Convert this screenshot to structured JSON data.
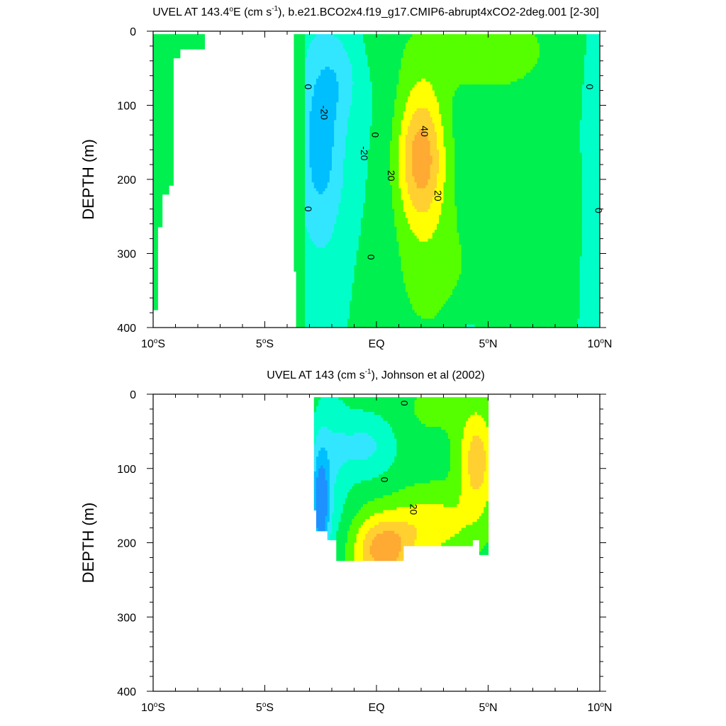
{
  "chart_data": [
    {
      "type": "heatmap",
      "subtype": "filled-contour",
      "title_parts": {
        "prefix": "UVEL AT 143.4",
        "deg": "o",
        "units_pre": "E (cm s",
        "sup": "-1",
        "suffix": "), b.e21.BCO2x4.f19_g17.CMIP6-abrupt4xCO2-2deg.001 [2-30]"
      },
      "ylabel": "DEPTH (m)",
      "xlim": [
        -10,
        10
      ],
      "ylim": [
        0,
        400
      ],
      "y_reversed": true,
      "x_ticks": [
        -10,
        -5,
        0,
        5,
        10
      ],
      "x_tick_labels": [
        {
          "num": "10",
          "deg": "o",
          "hemi": "S"
        },
        {
          "num": "5",
          "deg": "o",
          "hemi": "S"
        },
        {
          "num": "EQ",
          "deg": "",
          "hemi": ""
        },
        {
          "num": "5",
          "deg": "o",
          "hemi": "N"
        },
        {
          "num": "10",
          "deg": "o",
          "hemi": "N"
        }
      ],
      "y_ticks": [
        0,
        100,
        200,
        300,
        400
      ],
      "y_tick_labels": [
        "0",
        "100",
        "200",
        "300",
        "400"
      ],
      "contour_interval": 10,
      "color_levels": [
        {
          "range": [
            -40,
            -30
          ],
          "color": "#1e90ff"
        },
        {
          "range": [
            -30,
            -20
          ],
          "color": "#00bfff"
        },
        {
          "range": [
            -20,
            -10
          ],
          "color": "#33e6ff"
        },
        {
          "range": [
            -10,
            0
          ],
          "color": "#00ffc8"
        },
        {
          "range": [
            0,
            10
          ],
          "color": "#00f050"
        },
        {
          "range": [
            10,
            20
          ],
          "color": "#55ff00"
        },
        {
          "range": [
            20,
            30
          ],
          "color": "#ffff00"
        },
        {
          "range": [
            30,
            40
          ],
          "color": "#ffd030"
        },
        {
          "range": [
            40,
            50
          ],
          "color": "#ffaa33"
        }
      ],
      "contour_labels": [
        {
          "text": "0",
          "x": -3.2,
          "y": 75
        },
        {
          "text": "-20",
          "x": -2.5,
          "y": 110
        },
        {
          "text": "0",
          "x": -0.2,
          "y": 140
        },
        {
          "text": "-20",
          "x": -0.7,
          "y": 165
        },
        {
          "text": "40",
          "x": 2.0,
          "y": 135
        },
        {
          "text": "20",
          "x": 0.5,
          "y": 195
        },
        {
          "text": "20",
          "x": 2.6,
          "y": 222
        },
        {
          "text": "0",
          "x": -3.2,
          "y": 240
        },
        {
          "text": "0",
          "x": -0.4,
          "y": 305
        },
        {
          "text": "0",
          "x": 9.4,
          "y": 75
        },
        {
          "text": "0",
          "x": 9.8,
          "y": 242
        }
      ],
      "fields": {
        "westward_undercurrent_core": {
          "x": -2.5,
          "depth": 150,
          "speed": -20
        },
        "eastward_jet_core": {
          "x": 2.0,
          "depth": 170,
          "speed": 45
        },
        "northern_surface_band": {
          "x_range": [
            1.0,
            9.0
          ],
          "speed": [
            10,
            20
          ]
        }
      }
    },
    {
      "type": "heatmap",
      "subtype": "filled-contour",
      "title_parts": {
        "prefix": "UVEL AT 143 (cm s",
        "sup": "-1",
        "suffix": "), Johnson et al (2002)"
      },
      "ylabel": "DEPTH (m)",
      "xlim": [
        -10,
        10
      ],
      "ylim": [
        0,
        400
      ],
      "y_reversed": true,
      "x_ticks": [
        -10,
        -5,
        0,
        5,
        10
      ],
      "x_tick_labels": [
        {
          "num": "10",
          "deg": "o",
          "hemi": "S"
        },
        {
          "num": "5",
          "deg": "o",
          "hemi": "S"
        },
        {
          "num": "EQ",
          "deg": "",
          "hemi": ""
        },
        {
          "num": "5",
          "deg": "o",
          "hemi": "N"
        },
        {
          "num": "10",
          "deg": "o",
          "hemi": "N"
        }
      ],
      "y_ticks": [
        0,
        100,
        200,
        300,
        400
      ],
      "y_tick_labels": [
        "0",
        "100",
        "200",
        "300",
        "400"
      ],
      "data_extent": {
        "x": [
          -2.8,
          5.0
        ],
        "depth": [
          5,
          225
        ]
      },
      "contour_labels": [
        {
          "text": "0",
          "x": 1.1,
          "y": 12
        },
        {
          "text": "0",
          "x": 0.2,
          "y": 115
        },
        {
          "text": "20",
          "x": 1.5,
          "y": 155
        }
      ],
      "fields": {
        "westward_core": {
          "x": -2.5,
          "depth": 150,
          "speed": -35
        },
        "eastward_core_deep": {
          "x": 0.3,
          "depth": 210,
          "speed": 40
        },
        "eastward_core_north": {
          "x": 4.5,
          "depth": 90,
          "speed": 30
        }
      }
    }
  ]
}
